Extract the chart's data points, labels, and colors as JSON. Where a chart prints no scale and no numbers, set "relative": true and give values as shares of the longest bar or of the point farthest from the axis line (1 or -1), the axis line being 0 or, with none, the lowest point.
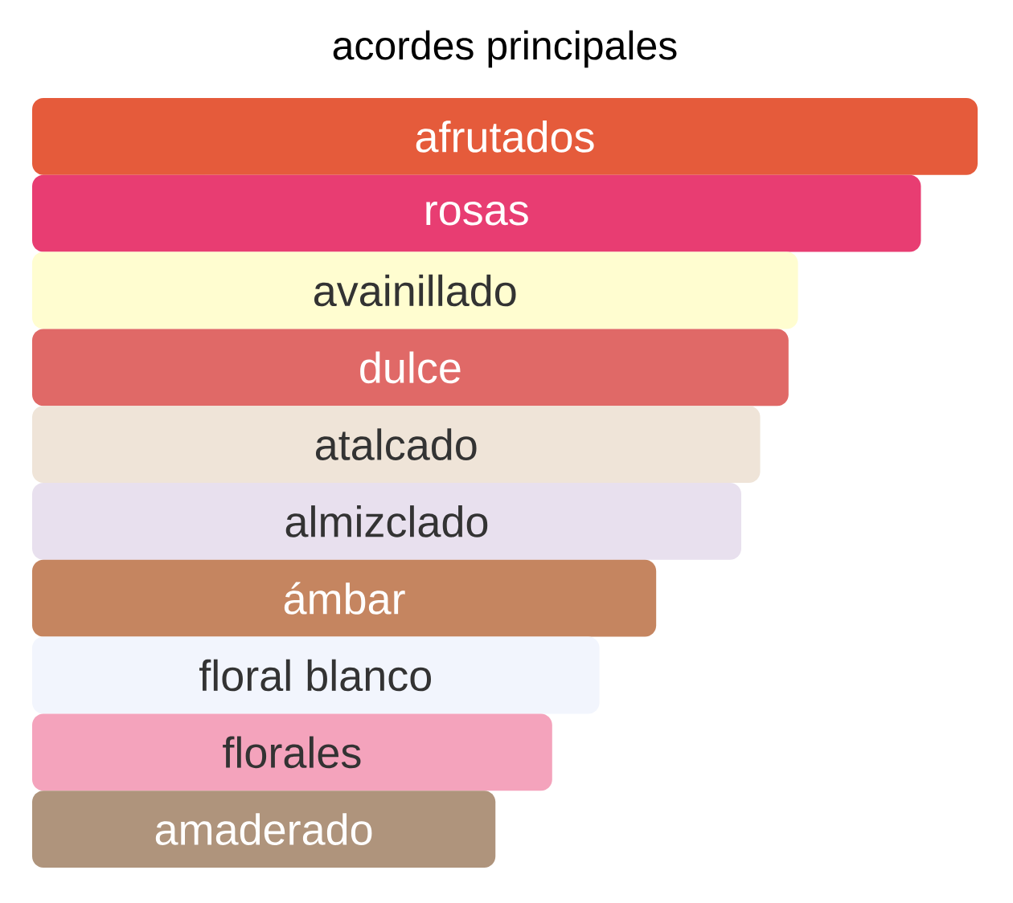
{
  "chart_data": {
    "type": "bar",
    "orientation": "horizontal",
    "relative": true,
    "title": "acordes principales",
    "categories": [
      "afrutados",
      "rosas",
      "avainillado",
      "dulce",
      "atalcado",
      "almizclado",
      "ámbar",
      "floral blanco",
      "florales",
      "amaderado"
    ],
    "values": [
      1,
      0.94,
      0.81,
      0.8,
      0.77,
      0.75,
      0.66,
      0.6,
      0.55,
      0.49
    ],
    "colors": [
      "#e55b3b",
      "#e83d72",
      "#fffdd0",
      "#e06967",
      "#efe4d8",
      "#e8e0ee",
      "#c58560",
      "#f2f5fd",
      "#f4a3bc",
      "#af947c"
    ]
  }
}
